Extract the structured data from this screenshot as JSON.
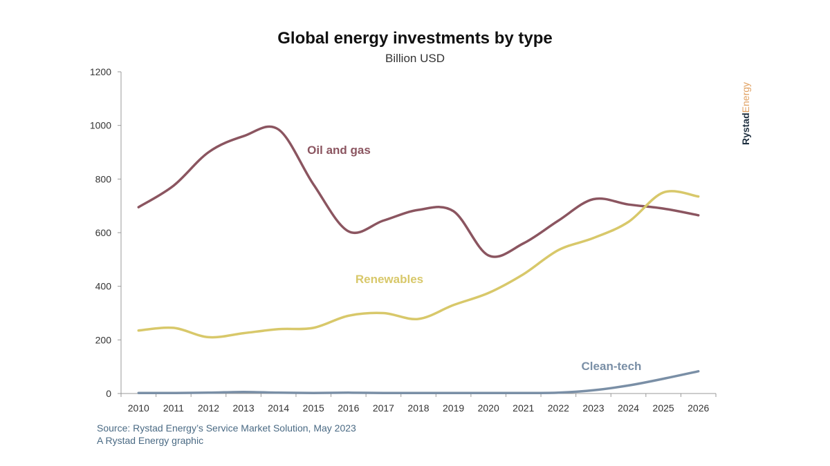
{
  "title": "Global energy investments by type",
  "subtitle": "Billion USD",
  "source_line": "Source: Rystad Energy’s Service Market Solution, May 2023",
  "credit_line": "A Rystad Energy graphic",
  "logo": {
    "part1": "Rystad",
    "part2": "Energy"
  },
  "chart_data": {
    "type": "line",
    "x": [
      "2010",
      "2011",
      "2012",
      "2013",
      "2014",
      "2015",
      "2016",
      "2017",
      "2018",
      "2019",
      "2020",
      "2021",
      "2022",
      "2023",
      "2024",
      "2025",
      "2026"
    ],
    "ylim": [
      0,
      1200
    ],
    "yticks": [
      0,
      200,
      400,
      600,
      800,
      1000,
      1200
    ],
    "grid": false,
    "series": [
      {
        "name": "Oil and gas",
        "color": "#8b5560",
        "values": [
          695,
          775,
          900,
          960,
          985,
          780,
          605,
          645,
          685,
          680,
          515,
          560,
          645,
          725,
          705,
          690,
          665
        ]
      },
      {
        "name": "Renewables",
        "color": "#d8c86a",
        "values": [
          235,
          245,
          210,
          225,
          240,
          245,
          290,
          300,
          278,
          330,
          375,
          445,
          535,
          580,
          640,
          750,
          735
        ]
      },
      {
        "name": "Clean-tech",
        "color": "#7a8fa6",
        "values": [
          2,
          2,
          3,
          6,
          3,
          2,
          3,
          2,
          2,
          2,
          2,
          2,
          3,
          12,
          30,
          55,
          83
        ]
      }
    ]
  }
}
